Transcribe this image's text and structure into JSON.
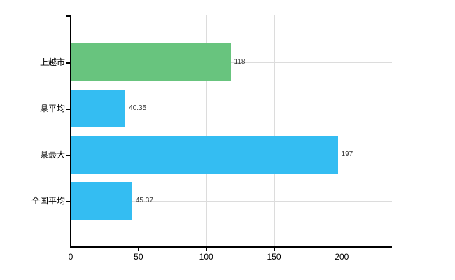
{
  "chart_data": {
    "type": "bar",
    "orientation": "horizontal",
    "title": "",
    "xlabel": "",
    "ylabel": "",
    "categories": [
      "上越市",
      "県平均",
      "県最大",
      "全国平均"
    ],
    "values": [
      118,
      40.35,
      197,
      45.37
    ],
    "value_labels": [
      "118",
      "40.35",
      "197",
      "45.37"
    ],
    "bar_colors": [
      "#68c47e",
      "#34bdf2",
      "#34bdf2",
      "#34bdf2"
    ],
    "x_ticks": [
      0,
      50,
      100,
      150,
      200
    ],
    "x_tick_labels": [
      "0",
      "50",
      "100",
      "150",
      "200"
    ],
    "xlim": [
      0,
      237
    ],
    "grid": true,
    "legend": "none",
    "axis_color": "#000000",
    "grid_color": "#dcdcdc",
    "top_border_style": "dashed",
    "background_color": "#ffffff"
  }
}
